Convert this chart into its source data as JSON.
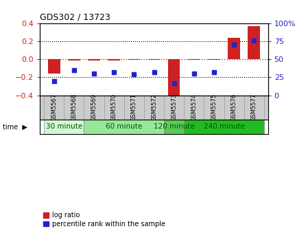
{
  "title": "GDS302 / 13723",
  "samples": [
    "GSM5567",
    "GSM5568",
    "GSM5569",
    "GSM5570",
    "GSM5571",
    "GSM5572",
    "GSM5573",
    "GSM5574",
    "GSM5575",
    "GSM5576",
    "GSM5577"
  ],
  "log_ratio": [
    -0.155,
    -0.01,
    -0.01,
    -0.01,
    -0.005,
    -0.005,
    -0.42,
    -0.005,
    -0.005,
    0.235,
    0.365
  ],
  "percentile_rank": [
    20,
    35,
    30,
    32,
    29,
    32,
    17,
    30,
    32,
    70,
    76
  ],
  "group_boundaries": [
    0,
    2,
    6,
    7,
    11
  ],
  "group_labels": [
    "30 minute",
    "60 minute",
    "120 minute",
    "240 minute"
  ],
  "group_colors": [
    "#d4f7d4",
    "#99e699",
    "#55cc55",
    "#22bb22"
  ],
  "ylim": [
    -0.4,
    0.4
  ],
  "yticks_left": [
    -0.4,
    -0.2,
    0,
    0.2,
    0.4
  ],
  "yticks_right_vals": [
    -0.4,
    -0.2,
    0.0,
    0.2,
    0.4
  ],
  "yticks_right_labels": [
    "0",
    "25",
    "50",
    "75",
    "100%"
  ],
  "bar_color": "#cc2222",
  "dot_color": "#2222cc",
  "zero_line_color": "#cc2222",
  "background_color": "#ffffff",
  "ylabel_left_color": "#cc2222",
  "ylabel_right_color": "#2222cc",
  "legend_log_ratio": "log ratio",
  "legend_percentile": "percentile rank within the sample",
  "label_bg_color": "#cccccc"
}
